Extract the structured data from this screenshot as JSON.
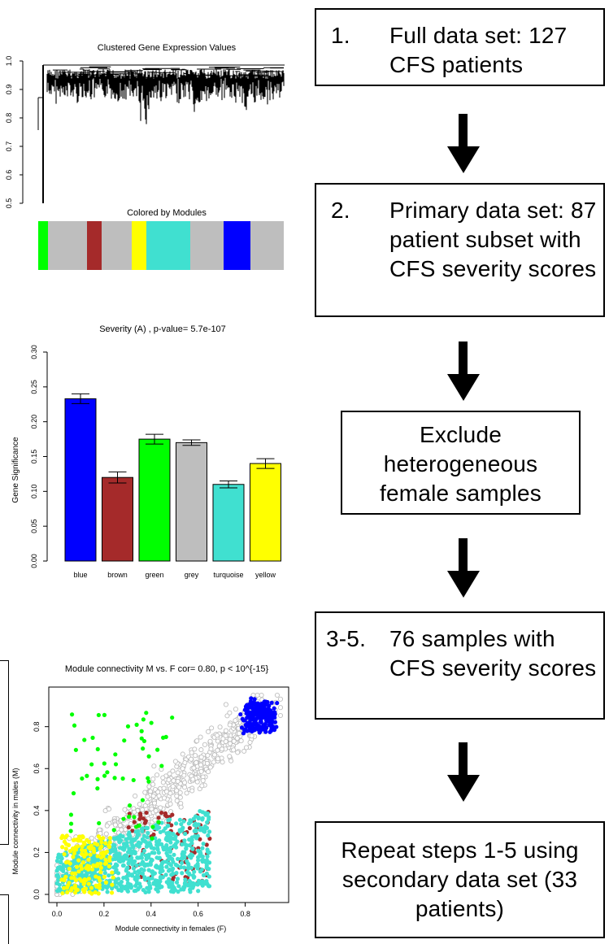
{
  "dendrogram": {
    "title": "Clustered Gene Expression Values",
    "yticks": [
      "0.5",
      "0.6",
      "0.7",
      "0.8",
      "0.9",
      "1.0"
    ],
    "modules_title": "Colored by Modules",
    "module_strip": [
      {
        "color": "#00ff00",
        "width": 12
      },
      {
        "color": "#bebebe",
        "width": 48
      },
      {
        "color": "#a52a2a",
        "width": 18
      },
      {
        "color": "#bebebe",
        "width": 37
      },
      {
        "color": "#ffff00",
        "width": 18
      },
      {
        "color": "#40e0d0",
        "width": 54
      },
      {
        "color": "#bebebe",
        "width": 41
      },
      {
        "color": "#0000ff",
        "width": 33
      },
      {
        "color": "#bebebe",
        "width": 41
      }
    ]
  },
  "chart_data": [
    {
      "type": "bar",
      "title": "Severity (A) , p-value= 5.7e-107",
      "ylabel": "Gene Significance",
      "ylim": [
        0,
        0.3
      ],
      "yticks": [
        "0.00",
        "0.05",
        "0.10",
        "0.15",
        "0.20",
        "0.25",
        "0.30"
      ],
      "categories": [
        "blue",
        "brown",
        "green",
        "grey",
        "turquoise",
        "yellow"
      ],
      "values": [
        0.233,
        0.12,
        0.175,
        0.17,
        0.11,
        0.14
      ],
      "errors": [
        0.007,
        0.008,
        0.007,
        0.004,
        0.005,
        0.007
      ],
      "colors": [
        "#0000ff",
        "#a52a2a",
        "#00ff00",
        "#bebebe",
        "#40e0d0",
        "#ffff00"
      ]
    },
    {
      "type": "scatter",
      "title": "Module connectivity M vs. F cor= 0.80, p < 10^{-15}",
      "xlabel": "Module connectivity in females (F)",
      "ylabel": "Module connectivity in males (M)",
      "xlim": [
        0,
        0.95
      ],
      "ylim": [
        0,
        0.95
      ],
      "xticks": [
        "0.0",
        "0.2",
        "0.4",
        "0.6",
        "0.8"
      ],
      "yticks": [
        "0.0",
        "0.2",
        "0.4",
        "0.6",
        "0.8"
      ],
      "series": [
        {
          "name": "grey",
          "color": "#bebebe",
          "points_desc": "broad diagonal cloud"
        },
        {
          "name": "turquoise",
          "color": "#40e0d0"
        },
        {
          "name": "yellow",
          "color": "#ffff00"
        },
        {
          "name": "brown",
          "color": "#a52a2a"
        },
        {
          "name": "green",
          "color": "#00ff00"
        },
        {
          "name": "blue",
          "color": "#0000ff"
        }
      ]
    }
  ],
  "flow": {
    "step1": {
      "num": "1.",
      "text": "Full data set: 127 CFS patients"
    },
    "step2": {
      "num": "2.",
      "text": "Primary data set: 87 patient subset with CFS severity scores"
    },
    "exclude": {
      "text": "Exclude heterogeneous female samples"
    },
    "step3": {
      "num": "3-5.",
      "text": "76 samples with CFS severity scores"
    },
    "repeat": {
      "text": "Repeat steps 1-5 using secondary data set (33 patients)"
    }
  }
}
